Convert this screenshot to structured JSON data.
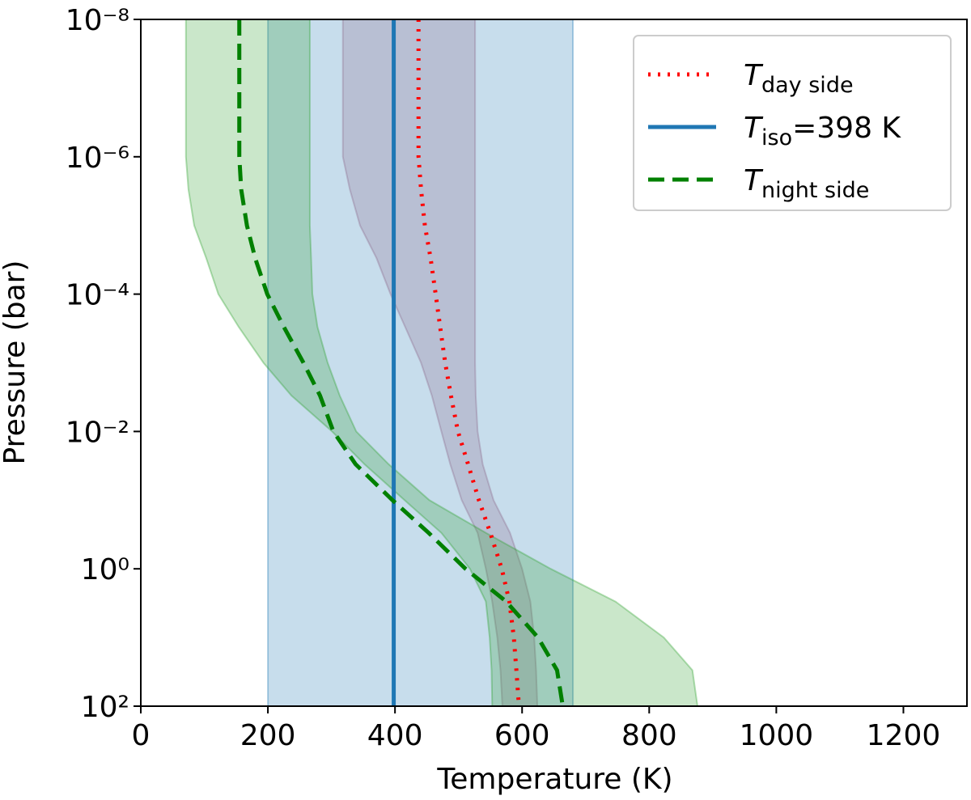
{
  "chart_data": {
    "type": "line",
    "x_label": "Temperature (K)",
    "y_label": "Pressure (bar)",
    "xlim": [
      0,
      1300
    ],
    "xticks": [
      0,
      200,
      400,
      600,
      800,
      1000,
      1200
    ],
    "ylim": [
      1e-08,
      100
    ],
    "ylog": true,
    "yinvert": true,
    "yticks": [
      {
        "value": 1e-08,
        "label": "10⁻⁸"
      },
      {
        "value": 1e-06,
        "label": "10⁻⁶"
      },
      {
        "value": 0.0001,
        "label": "10⁻⁴"
      },
      {
        "value": 0.01,
        "label": "10⁻²"
      },
      {
        "value": 1,
        "label": "10⁰"
      },
      {
        "value": 100,
        "label": "10²"
      }
    ],
    "legend": "upper right",
    "series": [
      {
        "name": "T",
        "name_sub": "day side",
        "color": "#ff0000",
        "style": "dotted",
        "band_color": "#b0607a",
        "y": [
          1e-08,
          1e-07,
          1e-06,
          3e-06,
          1e-05,
          3e-05,
          0.0001,
          0.0003,
          0.001,
          0.003,
          0.01,
          0.03,
          0.1,
          0.3,
          1,
          3,
          10,
          30,
          100
        ],
        "x": [
          437,
          437,
          437,
          441,
          447,
          456,
          464,
          471,
          479,
          488,
          499,
          515,
          532,
          550,
          568,
          580,
          587,
          591,
          595
        ],
        "lower": [
          318,
          318,
          318,
          329,
          345,
          371,
          393,
          416,
          441,
          458,
          473,
          487,
          505,
          530,
          543,
          553,
          561,
          566,
          569
        ],
        "upper": [
          526,
          526,
          526,
          526,
          526,
          526,
          526,
          526,
          526,
          527,
          530,
          538,
          555,
          581,
          600,
          613,
          619,
          622,
          624
        ]
      },
      {
        "name": "T",
        "name_sub": "iso",
        "name_suffix": "=398 K",
        "color": "#1f77b4",
        "style": "solid",
        "band_color": "#1f77b4",
        "y": [
          1e-08,
          100
        ],
        "x": [
          398,
          398
        ],
        "lower": [
          200,
          200
        ],
        "upper": [
          680,
          680
        ]
      },
      {
        "name": "T",
        "name_sub": "night side",
        "color": "#008000",
        "style": "dashed",
        "band_color": "#2ca02c",
        "y": [
          1e-08,
          1e-07,
          1e-06,
          3e-06,
          1e-05,
          3e-05,
          0.0001,
          0.0003,
          0.001,
          0.003,
          0.01,
          0.03,
          0.1,
          0.3,
          1,
          3,
          10,
          30,
          100
        ],
        "x": [
          155,
          155,
          155,
          158,
          167,
          180,
          199,
          225,
          256,
          282,
          303,
          338,
          396,
          453,
          511,
          575,
          625,
          655,
          664
        ],
        "lower": [
          71,
          71,
          71,
          75,
          84,
          103,
          122,
          154,
          193,
          237,
          301,
          352,
          415,
          473,
          518,
          543,
          549,
          552,
          553
        ],
        "upper": [
          266,
          266,
          266,
          266,
          266,
          268,
          270,
          278,
          294,
          313,
          339,
          390,
          454,
          543,
          645,
          747,
          823,
          868,
          876
        ]
      }
    ]
  }
}
